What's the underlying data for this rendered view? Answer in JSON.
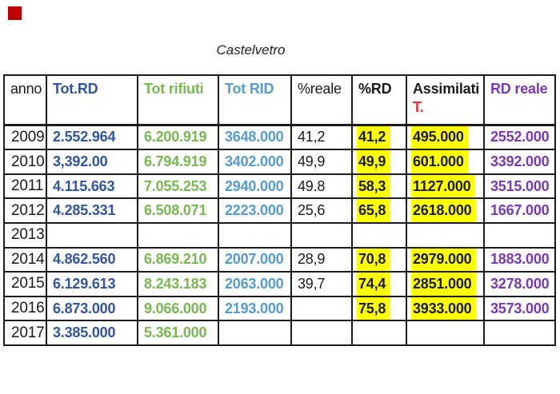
{
  "page": {
    "title": "Castelvetro",
    "background": "#ffffff"
  },
  "marker": {
    "color": "#c00000"
  },
  "colors": {
    "black": "#1a1a1a",
    "blue": "#2f55a4",
    "green": "#76ba4e",
    "light_blue": "#539bd5",
    "purple": "#7b36be",
    "red": "#e83030",
    "highlight": "#ffff00",
    "border": "#1c1c1c"
  },
  "table": {
    "columns": [
      {
        "key": "anno",
        "label": "anno",
        "color": "black",
        "bold": false,
        "highlight": false
      },
      {
        "key": "tot_rd",
        "label": "Tot.RD",
        "color": "blue",
        "bold": true,
        "highlight": false
      },
      {
        "key": "tot_rifiuti",
        "label": "Tot rifiuti",
        "color": "green",
        "bold": true,
        "highlight": false
      },
      {
        "key": "tot_rid",
        "label": "Tot RID",
        "color": "light_blue",
        "bold": true,
        "highlight": false
      },
      {
        "key": "perc_reale",
        "label": "%reale",
        "color": "black",
        "bold": false,
        "highlight": false
      },
      {
        "key": "perc_rd",
        "label": "%RD",
        "color": "black",
        "bold": true,
        "highlight": true
      },
      {
        "key": "assimilati",
        "label": "Assimilati",
        "label_line2": "T.",
        "label2_color": "red",
        "color": "black",
        "bold": true,
        "highlight": true
      },
      {
        "key": "rd_reale",
        "label": "RD reale",
        "color": "purple",
        "bold": true,
        "highlight": false
      }
    ],
    "rows": [
      {
        "anno": "2009",
        "tot_rd": "2.552.964",
        "tot_rifiuti": "6.200.919",
        "tot_rid": "3648.000",
        "perc_reale": "41,2",
        "perc_rd": "41,2",
        "assimilati": "495.000",
        "rd_reale": "2552.000"
      },
      {
        "anno": "2010",
        "tot_rd": "3,392.00",
        "tot_rifiuti": "6.794.919",
        "tot_rid": "3402.000",
        "perc_reale": "49,9",
        "perc_rd": "49,9",
        "assimilati": "601.000",
        "rd_reale": "3392.000"
      },
      {
        "anno": "2011",
        "tot_rd": "4.115.663",
        "tot_rifiuti": "7.055.253",
        "tot_rid": "2940.000",
        "perc_reale": "49.8",
        "perc_rd": "58,3",
        "assimilati": "1127.000",
        "rd_reale": "3515.000"
      },
      {
        "anno": "2012",
        "tot_rd": "4.285.331",
        "tot_rifiuti": "6.508.071",
        "tot_rid": "2223.000",
        "perc_reale": "25,6",
        "perc_rd": "65,8",
        "assimilati": "2618.000",
        "rd_reale": "1667.000"
      },
      {
        "anno": "2013",
        "tot_rd": "",
        "tot_rifiuti": "",
        "tot_rid": "",
        "perc_reale": "",
        "perc_rd": "",
        "assimilati": "",
        "rd_reale": ""
      },
      {
        "anno": "2014",
        "tot_rd": "4.862.560",
        "tot_rifiuti": "6.869.210",
        "tot_rid": "2007.000",
        "perc_reale": "28,9",
        "perc_rd": "70,8",
        "assimilati": "2979.000",
        "rd_reale": "1883.000"
      },
      {
        "anno": "2015",
        "tot_rd": "6.129.613",
        "tot_rifiuti": "8.243.183",
        "tot_rid": "2063.000",
        "perc_reale": "39,7",
        "perc_rd": "74,4",
        "assimilati": "2851.000",
        "rd_reale": "3278.000"
      },
      {
        "anno": "2016",
        "tot_rd": "6.873.000",
        "tot_rifiuti": "9.066.000",
        "tot_rid": "2193.000",
        "perc_reale": "",
        "perc_rd": "75,8",
        "assimilati": "3933.000",
        "rd_reale": "3573.000"
      },
      {
        "anno": "2017",
        "tot_rd": "3.385.000",
        "tot_rifiuti": "5.361.000",
        "tot_rid": "",
        "perc_reale": "",
        "perc_rd": "",
        "assimilati": "",
        "rd_reale": ""
      }
    ]
  }
}
